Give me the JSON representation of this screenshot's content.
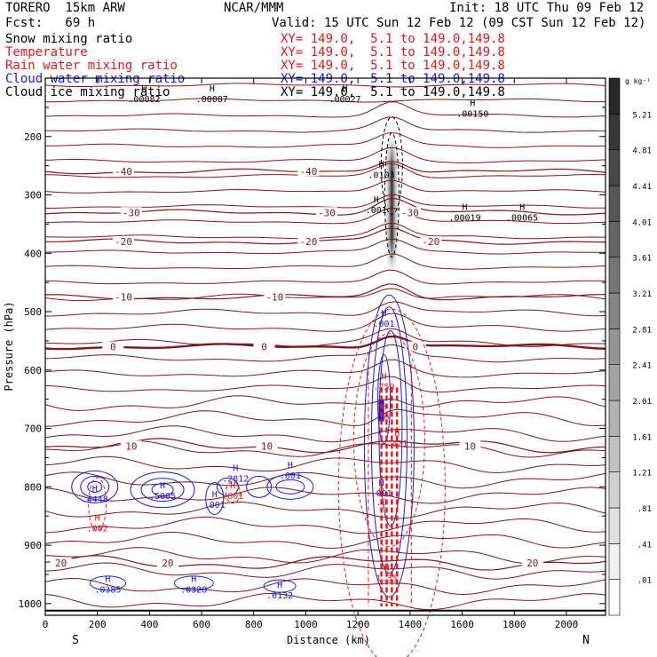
{
  "header": {
    "model": "TORERO  15km ARW",
    "org": "NCAR/MMM",
    "init": "Init: 18 UTC Thu 09 Feb 12",
    "fcst": "Fcst:   69 h",
    "valid": "Valid: 15 UTC Sun 12 Feb 12 (09 CST Sun 12 Feb 12)"
  },
  "legend": [
    {
      "field": "Snow mixing ratio",
      "range": "XY= 149.0,  5.1 to 149.0,149.8",
      "color": "#000000"
    },
    {
      "field": "Temperature",
      "range": "XY= 149.0,  5.1 to 149.0,149.8",
      "color": "#d81c1c"
    },
    {
      "field": "Rain water mixing ratio",
      "range": "XY= 149.0,  5.1 to 149.0,149.8",
      "color": "#d81c1c"
    },
    {
      "field": "Cloud water mixing ratio",
      "range": "XY= 149.0,  5.1 to 149.0,149.8",
      "color": "#1a1acc"
    },
    {
      "field": "Cloud ice mixing ratio",
      "range": "XY= 149.0,  5.1 to 149.0,149.8",
      "color": "#000000"
    }
  ],
  "chart_data": {
    "type": "cross-section",
    "xlabel": "Distance (km)",
    "ylabel": "Pressure (hPa)",
    "xlim": [
      0,
      2150
    ],
    "ylim": [
      1020,
      100
    ],
    "x_ticks": [
      0,
      200,
      400,
      600,
      800,
      1000,
      1200,
      1400,
      1600,
      1800,
      2000
    ],
    "y_ticks": [
      200,
      300,
      400,
      500,
      600,
      700,
      800,
      900,
      1000
    ],
    "x_end_labels": {
      "left": "S",
      "right": "N"
    },
    "colorbar": {
      "unit": "g kg⁻¹",
      "labels": [
        ".01",
        ".41",
        ".81",
        "1.21",
        "1.61",
        "2.01",
        "2.41",
        "2.81",
        "3.21",
        "3.61",
        "4.01",
        "4.41",
        "4.81",
        "5.21"
      ]
    },
    "temperature_isotherms": [
      {
        "label": "-40",
        "p": 260,
        "label_x": [
          300,
          1010
        ]
      },
      {
        "label": "-30",
        "p": 330,
        "label_x": [
          330,
          1080,
          1400
        ]
      },
      {
        "label": "-20",
        "p": 380,
        "label_x": [
          300,
          1010,
          1480
        ]
      },
      {
        "label": "-10",
        "p": 475,
        "label_x": [
          300,
          880
        ]
      },
      {
        "label": "0",
        "p": 560,
        "label_x": [
          260,
          840,
          1420
        ]
      },
      {
        "label": "10",
        "p": 730,
        "label_x": [
          330,
          850,
          1630
        ]
      },
      {
        "label": "20",
        "p": 930,
        "label_x": [
          60,
          470,
          1870
        ]
      }
    ],
    "cloud_water_maxima": [
      {
        "label": ".4448",
        "x": 190,
        "p": 820
      },
      {
        "label": ".5005",
        "x": 450,
        "p": 815
      },
      {
        "label": ".001",
        "x": 650,
        "p": 830
      },
      {
        "label": ".2812",
        "x": 730,
        "p": 785
      },
      {
        "label": ".001",
        "x": 940,
        "p": 780
      },
      {
        "label": ".0385",
        "x": 240,
        "p": 975
      },
      {
        "label": ".0328",
        "x": 570,
        "p": 975
      },
      {
        "label": ".0132",
        "x": 900,
        "p": 985
      },
      {
        "label": ".001",
        "x": 1290,
        "p": 810
      },
      {
        "label": ".001",
        "x": 1300,
        "p": 520
      }
    ],
    "rain_maxima": [
      {
        "label": ".002",
        "x": 200,
        "p": 870
      },
      {
        "label": ".001",
        "x": 720,
        "p": 815
      },
      {
        "label": ".759",
        "x": 1300,
        "p": 628
      },
      {
        "label": "1.35",
        "x": 1310,
        "p": 955
      },
      {
        "label": ".0",
        "x": 1300,
        "p": 680
      },
      {
        "label": ".421",
        "x": 1350,
        "p": 725
      },
      {
        "label": ".0",
        "x": 1290,
        "p": 825
      }
    ],
    "ice_maxima": [
      {
        "label": ".00082",
        "x": 380,
        "p": 135
      },
      {
        "label": ".00087",
        "x": 640,
        "p": 135
      },
      {
        "label": ".00027",
        "x": 1150,
        "p": 135
      },
      {
        "label": ".00150",
        "x": 1640,
        "p": 160
      },
      {
        "label": ".0103",
        "x": 1290,
        "p": 265
      },
      {
        "label": ".00019",
        "x": 1610,
        "p": 338
      },
      {
        "label": ".00065",
        "x": 1830,
        "p": 338
      },
      {
        "label": ".001",
        "x": 1270,
        "p": 325
      }
    ],
    "snow_column": {
      "x": 1330,
      "p_top": 200,
      "p_bottom": 430,
      "max": 5.21
    }
  }
}
